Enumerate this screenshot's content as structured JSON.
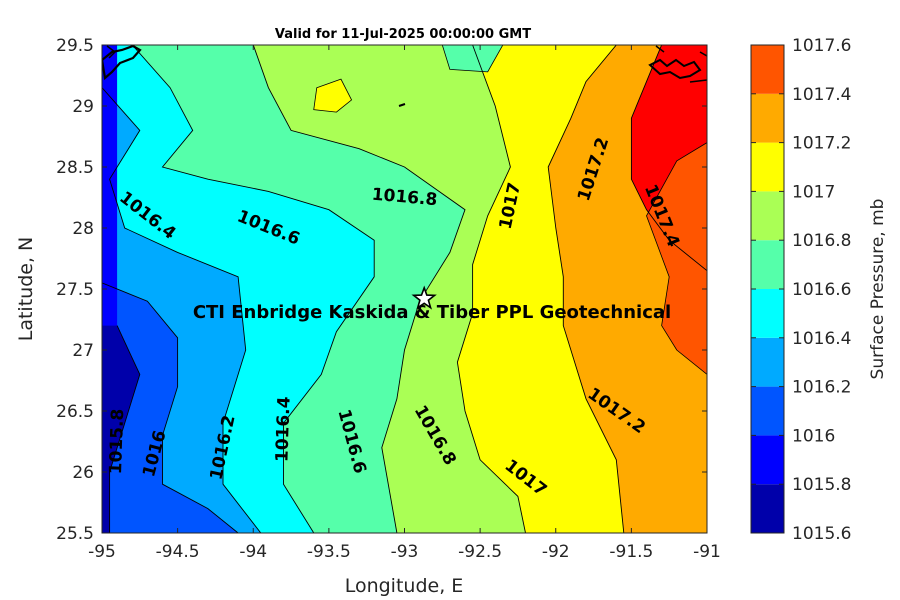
{
  "chart_data": {
    "type": "contourf",
    "title": "Valid for 11-Jul-2025 00:00:00 GMT",
    "xlabel": "Longitude, E",
    "ylabel": "Latitude, N",
    "xlim": [
      -95,
      -91
    ],
    "ylim": [
      25.5,
      29.5
    ],
    "xticks": [
      -95,
      -94.5,
      -94,
      -93.5,
      -93,
      -92.5,
      -92,
      -91.5,
      -91
    ],
    "xtick_labels": [
      "-95",
      "-94.5",
      "-94",
      "-93.5",
      "-93",
      "-92.5",
      "-92",
      "-91.5",
      "-91"
    ],
    "yticks": [
      25.5,
      26,
      26.5,
      27,
      27.5,
      28,
      28.5,
      29,
      29.5
    ],
    "ytick_labels": [
      "25.5",
      "26",
      "26.5",
      "27",
      "27.5",
      "28",
      "28.5",
      "29",
      "29.5"
    ],
    "colorbar": {
      "label": "Surface Pressure, mb",
      "levels": [
        1015.6,
        1015.8,
        1016.0,
        1016.2,
        1016.4,
        1016.6,
        1016.8,
        1017.0,
        1017.2,
        1017.4,
        1017.6
      ],
      "tick_labels": [
        "1015.6",
        "1015.8",
        "1016",
        "1016.2",
        "1016.4",
        "1016.6",
        "1016.8",
        "1017",
        "1017.2",
        "1017.4",
        "1017.6"
      ],
      "colors": [
        "#0000aa",
        "#0000ff",
        "#0055ff",
        "#00aaff",
        "#00ffff",
        "#55ffaa",
        "#aaff55",
        "#ffff00",
        "#ffaa00",
        "#ff5500",
        "#ff0000"
      ]
    },
    "contours": [
      {
        "level": "1015.8",
        "points": [
          [
            -94.9,
            27.2
          ],
          [
            -94.75,
            26.8
          ],
          [
            -94.85,
            26.4
          ],
          [
            -94.95,
            26.0
          ],
          [
            -94.95,
            25.5
          ]
        ]
      },
      {
        "level": "1016",
        "points": [
          [
            -95.0,
            27.55
          ],
          [
            -94.7,
            27.4
          ],
          [
            -94.5,
            27.1
          ],
          [
            -94.5,
            26.7
          ],
          [
            -94.6,
            26.3
          ],
          [
            -94.6,
            25.9
          ],
          [
            -94.3,
            25.7
          ],
          [
            -94.1,
            25.5
          ]
        ]
      },
      {
        "level": "1016.2",
        "points": [
          [
            -95.0,
            29.15
          ],
          [
            -94.75,
            28.8
          ],
          [
            -94.95,
            28.4
          ],
          [
            -94.85,
            28.0
          ],
          [
            -94.5,
            27.8
          ],
          [
            -94.1,
            27.6
          ],
          [
            -94.05,
            27.0
          ],
          [
            -94.2,
            26.4
          ],
          [
            -94.2,
            25.9
          ],
          [
            -93.95,
            25.5
          ]
        ]
      },
      {
        "level": "1016.4",
        "points": [
          [
            -94.8,
            29.5
          ],
          [
            -94.55,
            29.15
          ],
          [
            -94.4,
            28.8
          ],
          [
            -94.6,
            28.5
          ],
          [
            -94.3,
            28.4
          ],
          [
            -93.9,
            28.3
          ],
          [
            -93.5,
            28.15
          ],
          [
            -93.2,
            27.9
          ],
          [
            -93.2,
            27.6
          ],
          [
            -93.45,
            27.15
          ],
          [
            -93.55,
            26.8
          ],
          [
            -93.8,
            26.4
          ],
          [
            -93.8,
            25.9
          ],
          [
            -93.6,
            25.5
          ]
        ]
      },
      {
        "level": "1016.6",
        "points": [
          [
            -94.0,
            29.5
          ],
          [
            -93.9,
            29.15
          ],
          [
            -93.75,
            28.8
          ],
          [
            -93.3,
            28.65
          ],
          [
            -93.0,
            28.5
          ],
          [
            -92.6,
            28.15
          ],
          [
            -92.7,
            27.8
          ],
          [
            -92.9,
            27.4
          ],
          [
            -93.0,
            27.0
          ],
          [
            -93.05,
            26.6
          ],
          [
            -93.15,
            26.2
          ],
          [
            -93.05,
            25.5
          ]
        ]
      },
      {
        "level": "1016.8",
        "points": [
          [
            -92.55,
            29.5
          ],
          [
            -92.4,
            29.0
          ],
          [
            -92.3,
            28.5
          ],
          [
            -92.45,
            28.1
          ],
          [
            -92.55,
            27.7
          ],
          [
            -92.55,
            27.3
          ],
          [
            -92.65,
            26.9
          ],
          [
            -92.6,
            26.5
          ],
          [
            -92.5,
            26.1
          ],
          [
            -92.25,
            25.8
          ],
          [
            -92.2,
            25.5
          ]
        ]
      },
      {
        "level": "1017",
        "points": [
          [
            -91.6,
            29.5
          ],
          [
            -91.8,
            29.2
          ],
          [
            -91.9,
            28.9
          ],
          [
            -92.05,
            28.5
          ],
          [
            -92.0,
            28.0
          ],
          [
            -91.95,
            27.6
          ],
          [
            -91.95,
            27.2
          ],
          [
            -91.8,
            26.6
          ],
          [
            -91.6,
            26.1
          ],
          [
            -91.55,
            25.5
          ]
        ]
      },
      {
        "level": "1017.2",
        "points": [
          [
            -91.3,
            29.5
          ],
          [
            -91.5,
            28.9
          ],
          [
            -91.5,
            28.4
          ],
          [
            -91.4,
            28.15
          ],
          [
            -91.25,
            27.9
          ],
          [
            -91.0,
            27.65
          ]
        ]
      }
    ],
    "site": {
      "label": "CTI Enbridge  Kaskida & Tiber PPL Geotechnical",
      "lon": -92.87,
      "lat": 27.42
    },
    "contour_labels": [
      {
        "text": "1016.4",
        "lon": -94.7,
        "lat": 28.1,
        "angle": 38
      },
      {
        "text": "1016.6",
        "lon": -93.9,
        "lat": 28.0,
        "angle": 22
      },
      {
        "text": "1016.8",
        "lon": -93.0,
        "lat": 28.25,
        "angle": 5
      },
      {
        "text": "1017",
        "lon": -92.3,
        "lat": 28.18,
        "angle": -78
      },
      {
        "text": "1017.2",
        "lon": -91.75,
        "lat": 28.48,
        "angle": -72
      },
      {
        "text": "1017.4",
        "lon": -91.3,
        "lat": 28.1,
        "angle": 68
      },
      {
        "text": "1015.8",
        "lon": -94.9,
        "lat": 26.25,
        "angle": -88
      },
      {
        "text": "1016",
        "lon": -94.65,
        "lat": 26.15,
        "angle": -75
      },
      {
        "text": "1016.2",
        "lon": -94.2,
        "lat": 26.2,
        "angle": -78
      },
      {
        "text": "1016.4",
        "lon": -93.8,
        "lat": 26.35,
        "angle": -88
      },
      {
        "text": "1016.6",
        "lon": -93.35,
        "lat": 26.25,
        "angle": 75
      },
      {
        "text": "1016.8",
        "lon": -92.8,
        "lat": 26.3,
        "angle": 60
      },
      {
        "text": "1017",
        "lon": -92.2,
        "lat": 25.95,
        "angle": 38
      },
      {
        "text": "1017.2",
        "lon": -91.6,
        "lat": 26.5,
        "angle": 35
      }
    ]
  }
}
